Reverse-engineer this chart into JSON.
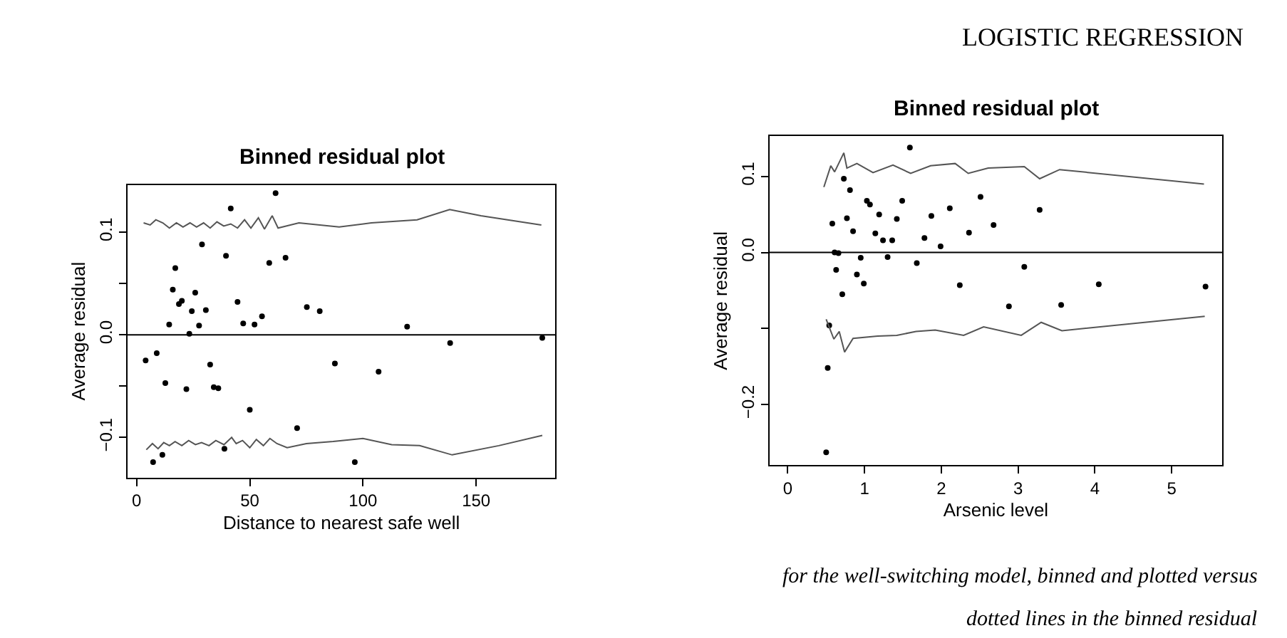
{
  "chart_data": [
    {
      "type": "scatter",
      "title": "Binned residual plot",
      "xlabel": "Distance to nearest safe well",
      "ylabel": "Average residual",
      "xlim": [
        -4,
        185
      ],
      "ylim": [
        -0.139,
        0.146
      ],
      "xticks": [
        0,
        50,
        100,
        150
      ],
      "yticks": [
        {
          "value": -0.1,
          "label": "−0.1"
        },
        {
          "value": -0.05,
          "label": null
        },
        {
          "value": 0,
          "label": "0.0"
        },
        {
          "value": 0.05,
          "label": null
        },
        {
          "value": 0.1,
          "label": "0.1"
        }
      ],
      "ref_lines": [
        {
          "axis": "y",
          "value": 0,
          "color": "#000000"
        }
      ],
      "series": [
        {
          "marker": "circle",
          "color": "#000000",
          "x": [
            61.4,
            41.6,
            28.9,
            39.5,
            58.6,
            65.8,
            17.1,
            16.0,
            18.7,
            20.0,
            25.9,
            24.4,
            30.6,
            14.4,
            27.6,
            23.3,
            44.6,
            47.1,
            52.1,
            55.4,
            75.2,
            80.9,
            119.5,
            138.5,
            179.2,
            4.0,
            8.9,
            12.7,
            22.0,
            32.5,
            34.1,
            36.1,
            50.0,
            70.9,
            87.6,
            106.9,
            96.4,
            38.8,
            7.3,
            11.4
          ],
          "values": [
            0.138,
            0.123,
            0.088,
            0.077,
            0.07,
            0.075,
            0.065,
            0.044,
            0.03,
            0.033,
            0.041,
            0.023,
            0.024,
            0.01,
            0.009,
            0.001,
            0.032,
            0.011,
            0.01,
            0.018,
            0.027,
            0.023,
            0.008,
            -0.008,
            -0.003,
            -0.025,
            -0.018,
            -0.047,
            -0.053,
            -0.029,
            -0.051,
            -0.052,
            -0.073,
            -0.091,
            -0.028,
            -0.036,
            -0.124,
            -0.111,
            -0.124,
            -0.117
          ]
        },
        {
          "type": "line",
          "marker": "none",
          "color": "#555555",
          "x": [
            3.1,
            6,
            8.5,
            11.6,
            14.5,
            17.6,
            20.5,
            23.6,
            26.5,
            29.6,
            32.5,
            35.5,
            38.5,
            41.6,
            44.6,
            47.7,
            50.5,
            53.8,
            56.5,
            59.9,
            62.5,
            71.7,
            89.5,
            103.7,
            123.9,
            138.3,
            152.1,
            178.8
          ],
          "values": [
            0.109,
            0.107,
            0.112,
            0.109,
            0.104,
            0.109,
            0.105,
            0.109,
            0.105,
            0.109,
            0.104,
            0.11,
            0.106,
            0.108,
            0.104,
            0.112,
            0.104,
            0.114,
            0.103,
            0.116,
            0.104,
            0.109,
            0.105,
            0.109,
            0.112,
            0.122,
            0.116,
            0.107
          ]
        },
        {
          "type": "line",
          "marker": "none",
          "color": "#555555",
          "x": [
            4.3,
            7,
            9.5,
            12,
            14.5,
            17,
            20,
            23,
            26,
            28.7,
            32,
            35,
            38.6,
            42,
            44,
            46.8,
            50,
            52.9,
            56,
            58.9,
            62,
            66.5,
            75,
            86.8,
            100,
            112.7,
            125,
            139.4,
            160,
            179.2
          ],
          "values": [
            -0.112,
            -0.106,
            -0.111,
            -0.105,
            -0.108,
            -0.104,
            -0.108,
            -0.103,
            -0.107,
            -0.105,
            -0.108,
            -0.103,
            -0.107,
            -0.1,
            -0.106,
            -0.103,
            -0.11,
            -0.102,
            -0.108,
            -0.101,
            -0.106,
            -0.11,
            -0.106,
            -0.104,
            -0.101,
            -0.107,
            -0.108,
            -0.117,
            -0.108,
            -0.098
          ]
        }
      ]
    },
    {
      "type": "scatter",
      "title": "Binned residual plot",
      "xlabel": "Arsenic level",
      "ylabel": "Average residual",
      "xlim": [
        -0.24,
        5.66
      ],
      "ylim": [
        -0.28,
        0.153
      ],
      "xticks": [
        0,
        1,
        2,
        3,
        4,
        5
      ],
      "yticks": [
        {
          "value": -0.2,
          "label": "−0.2"
        },
        {
          "value": -0.1,
          "label": null
        },
        {
          "value": 0,
          "label": "0.0"
        },
        {
          "value": 0.1,
          "label": "0.1"
        }
      ],
      "ref_lines": [
        {
          "axis": "y",
          "value": 0,
          "color": "#000000"
        }
      ],
      "annotations": [
        "LOGISTIC REGRESSION",
        "for the well-switching model, binned and plotted versus",
        "dotted lines in the binned residual"
      ],
      "series": [
        {
          "marker": "circle",
          "color": "#000000",
          "x": [
            1.59,
            0.73,
            0.81,
            1.03,
            1.07,
            1.19,
            1.42,
            1.49,
            1.87,
            2.11,
            2.51,
            2.36,
            2.68,
            3.28,
            0.58,
            0.77,
            0.85,
            1.14,
            1.24,
            1.36,
            1.78,
            1.99,
            0.61,
            0.66,
            0.95,
            1.3,
            1.68,
            3.08,
            4.05,
            5.44,
            0.63,
            0.9,
            0.99,
            0.71,
            2.24,
            2.88,
            3.56,
            0.54,
            0.52,
            0.5
          ],
          "values": [
            0.138,
            0.097,
            0.082,
            0.068,
            0.063,
            0.05,
            0.044,
            0.068,
            0.048,
            0.058,
            0.073,
            0.026,
            0.036,
            0.056,
            0.038,
            0.045,
            0.028,
            0.025,
            0.016,
            0.016,
            0.019,
            0.008,
            0.0,
            -0.001,
            -0.007,
            -0.006,
            -0.014,
            -0.019,
            -0.042,
            -0.045,
            -0.023,
            -0.029,
            -0.041,
            -0.055,
            -0.043,
            -0.071,
            -0.069,
            -0.096,
            -0.152,
            -0.263
          ]
        },
        {
          "type": "line",
          "marker": "none",
          "color": "#555555",
          "x": [
            0.47,
            0.56,
            0.61,
            0.73,
            0.77,
            0.9,
            1.11,
            1.37,
            1.6,
            1.86,
            2.18,
            2.35,
            2.61,
            3.08,
            3.28,
            3.54,
            5.42
          ],
          "values": [
            0.086,
            0.114,
            0.106,
            0.131,
            0.111,
            0.117,
            0.105,
            0.115,
            0.104,
            0.114,
            0.117,
            0.104,
            0.111,
            0.113,
            0.097,
            0.109,
            0.09
          ]
        },
        {
          "type": "line",
          "marker": "none",
          "color": "#555555",
          "x": [
            0.5,
            0.6,
            0.67,
            0.74,
            0.85,
            1.17,
            1.42,
            1.67,
            1.92,
            2.29,
            2.55,
            3.04,
            3.3,
            3.57,
            5.43
          ],
          "values": [
            -0.088,
            -0.114,
            -0.104,
            -0.131,
            -0.113,
            -0.11,
            -0.109,
            -0.104,
            -0.102,
            -0.109,
            -0.098,
            -0.109,
            -0.092,
            -0.103,
            -0.084
          ]
        }
      ]
    }
  ]
}
